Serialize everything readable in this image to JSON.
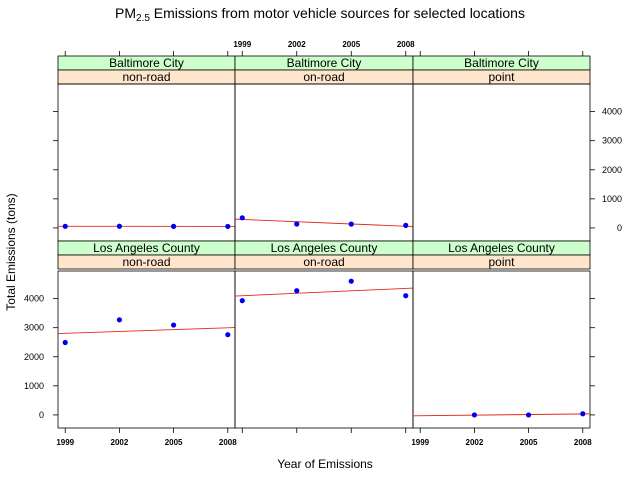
{
  "chart_data": {
    "type": "scatter",
    "title_main": "PM",
    "title_sub": "2.5",
    "title_rest": " Emissions from motor vehicle sources for selected locations",
    "xlabel": "Year of Emissions",
    "ylabel": "Total Emissions (tons)",
    "x_ticks": [
      "1999",
      "2002",
      "2005",
      "2008"
    ],
    "y_ticks": [
      "0",
      "1000",
      "2000",
      "3000",
      "4000"
    ],
    "ylim": [
      -450,
      4950
    ],
    "xlim": [
      1998.6,
      2008.4
    ],
    "grid": false,
    "fit_line": "linear regression (red)",
    "point_color": "#0000ee",
    "line_color": "#e8261a",
    "strip_city_color": "#ccffcc",
    "strip_type_color": "#ffe5cc",
    "x": [
      1999,
      2002,
      2005,
      2008
    ],
    "panels": [
      {
        "city": "Baltimore City",
        "type": "non-road",
        "values": [
          55,
          57,
          53,
          51
        ]
      },
      {
        "city": "Baltimore City",
        "type": "on-road",
        "values": [
          347,
          134,
          130,
          88
        ]
      },
      {
        "city": "Baltimore City",
        "type": "point",
        "values": [
          null,
          null,
          null,
          null
        ]
      },
      {
        "city": "Los Angeles County",
        "type": "non-road",
        "values": [
          2490,
          3270,
          3090,
          2760
        ]
      },
      {
        "city": "Los Angeles County",
        "type": "on-road",
        "values": [
          3930,
          4270,
          4600,
          4100
        ]
      },
      {
        "city": "Los Angeles County",
        "type": "point",
        "values": [
          null,
          0,
          0,
          40
        ]
      }
    ]
  }
}
